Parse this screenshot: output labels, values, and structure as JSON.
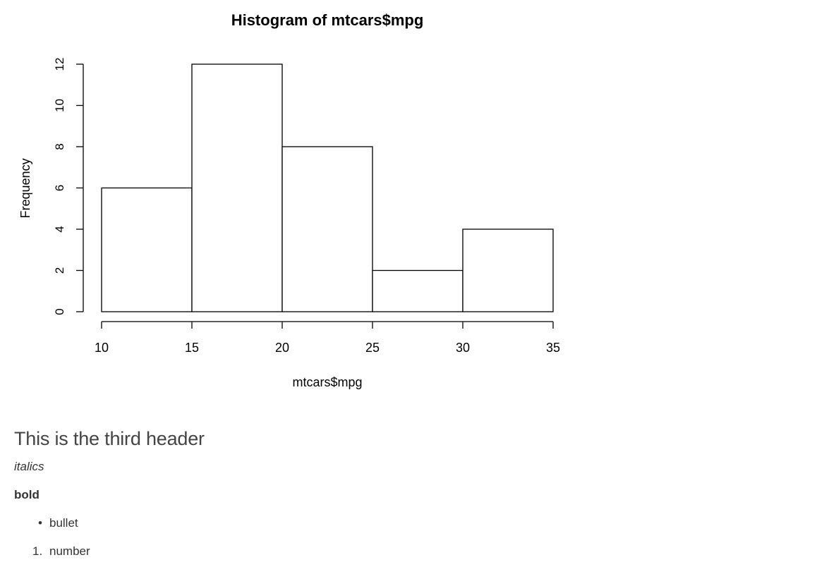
{
  "chart_data": {
    "type": "bar",
    "title": "Histogram of mtcars$mpg",
    "xlabel": "mtcars$mpg",
    "ylabel": "Frequency",
    "bins": [
      {
        "from": 10,
        "to": 15,
        "count": 6
      },
      {
        "from": 15,
        "to": 20,
        "count": 12
      },
      {
        "from": 20,
        "to": 25,
        "count": 8
      },
      {
        "from": 25,
        "to": 30,
        "count": 2
      },
      {
        "from": 30,
        "to": 35,
        "count": 4
      }
    ],
    "xticks": [
      10,
      15,
      20,
      25,
      30,
      35
    ],
    "yticks": [
      0,
      2,
      4,
      6,
      8,
      10,
      12
    ],
    "xlim": [
      10,
      35
    ],
    "ylim": [
      0,
      12
    ],
    "grid": false,
    "legend": "none"
  },
  "document": {
    "header3": "This is the third header",
    "italic_text": "italics",
    "bold_text": "bold",
    "bullet_items": [
      "bullet"
    ],
    "number_items": [
      {
        "marker": "1.",
        "text": "number"
      }
    ]
  }
}
